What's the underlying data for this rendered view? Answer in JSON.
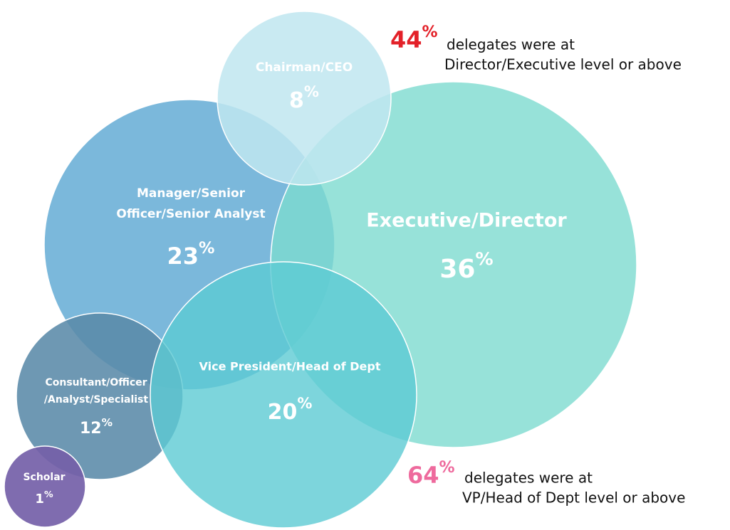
{
  "nodes": [
    {
      "label": [
        "Chairman/CEO"
      ],
      "value": 8,
      "unit": "%"
    },
    {
      "label": [
        "Manager/Senior",
        "Officer/Senior Analyst"
      ],
      "value": 23,
      "unit": "%"
    },
    {
      "label": [
        "Executive/Director"
      ],
      "value": 36,
      "unit": "%"
    },
    {
      "label": [
        "Vice President/Head of Dept"
      ],
      "value": 20,
      "unit": "%"
    },
    {
      "label": [
        "Consultant/Officer",
        "/Analyst/Specialist"
      ],
      "value": 12,
      "unit": "%"
    },
    {
      "label": [
        "Scholar"
      ],
      "value": 1,
      "unit": "%"
    }
  ],
  "notes": [
    {
      "value": 44,
      "unit": "%",
      "lines": [
        "delegates were at",
        "Director/Executive level or above"
      ]
    },
    {
      "value": 64,
      "unit": "%",
      "lines": [
        "delegates were at",
        "VP/Head of Dept level or above"
      ]
    }
  ]
}
